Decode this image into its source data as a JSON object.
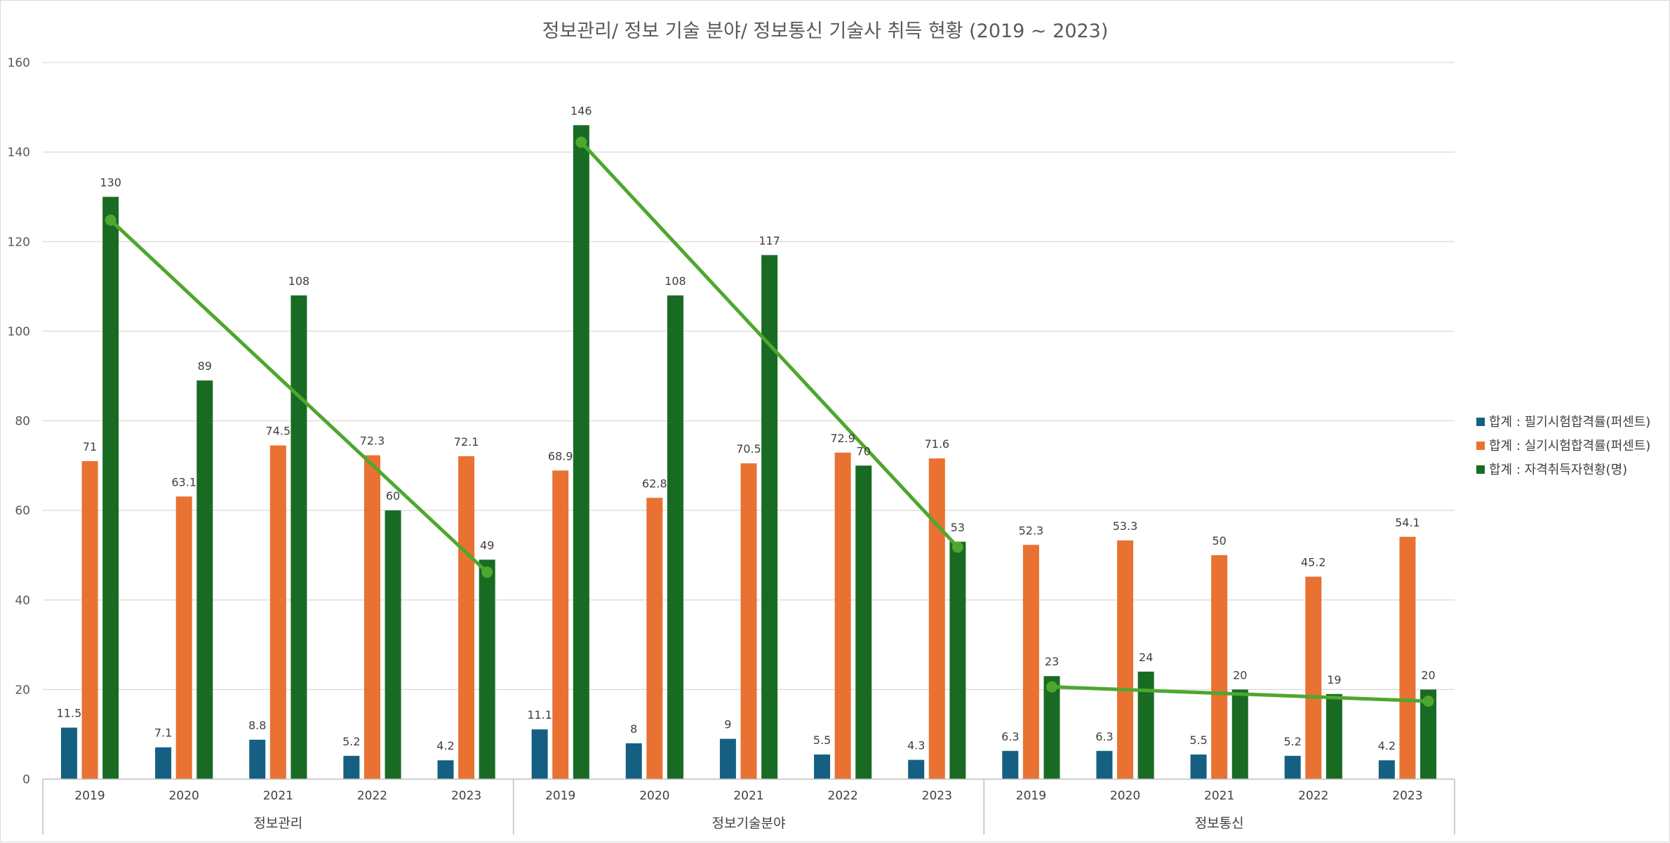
{
  "chart_data": {
    "type": "bar",
    "title": "정보관리/ 정보 기술 분야/ 정보통신 기술사 취득  현황 (2019 ~ 2023)",
    "ylim": [
      0,
      160
    ],
    "yticks": [
      0,
      20,
      40,
      60,
      80,
      100,
      120,
      140,
      160
    ],
    "grid": true,
    "legend_position": "right",
    "groups": [
      {
        "name": "정보관리",
        "categories": [
          "2019",
          "2020",
          "2021",
          "2022",
          "2023"
        ]
      },
      {
        "name": "정보기술분야",
        "categories": [
          "2019",
          "2020",
          "2021",
          "2022",
          "2023"
        ]
      },
      {
        "name": "정보통신",
        "categories": [
          "2019",
          "2020",
          "2021",
          "2022",
          "2023"
        ]
      }
    ],
    "series": [
      {
        "name": "합계 : 필기시험합격률(퍼센트)",
        "color": "#156082",
        "values": [
          11.5,
          7.1,
          8.8,
          5.2,
          4.2,
          11.1,
          8,
          9,
          5.5,
          4.3,
          6.3,
          6.3,
          5.5,
          5.2,
          4.2
        ]
      },
      {
        "name": "합계 : 실기시험합격률(퍼센트)",
        "color": "#e97132",
        "values": [
          71,
          63.1,
          74.5,
          72.3,
          72.1,
          68.9,
          62.8,
          70.5,
          72.9,
          71.6,
          52.3,
          53.3,
          50,
          45.2,
          54.1
        ]
      },
      {
        "name": "합계 : 자격취득자현황(명)",
        "color": "#196b24",
        "values": [
          130,
          89,
          108,
          60,
          49,
          146,
          108,
          117,
          70,
          53,
          23,
          24,
          20,
          19,
          20
        ]
      }
    ],
    "trendlines": [
      {
        "group": 0,
        "color": "#4ea72e",
        "start": 124.8,
        "end": 46.2
      },
      {
        "group": 1,
        "color": "#4ea72e",
        "start": 142.2,
        "end": 51.8
      },
      {
        "group": 2,
        "color": "#4ea72e",
        "start": 20.6,
        "end": 17.4
      }
    ]
  }
}
